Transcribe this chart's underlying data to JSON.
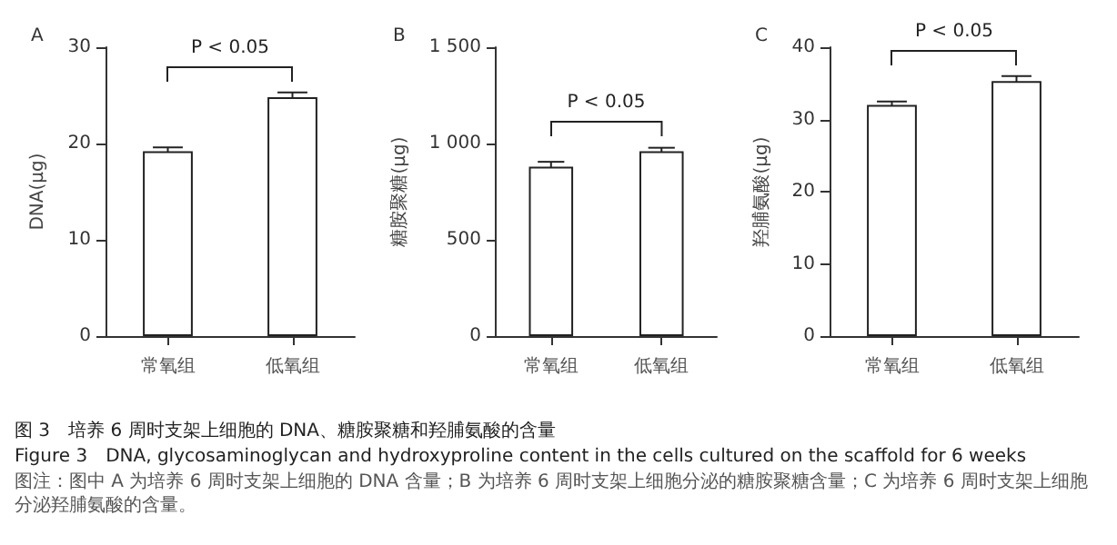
{
  "chart_data": [
    {
      "type": "bar",
      "title": "A",
      "ylabel": "DNA(μg)",
      "categories": [
        "常氧组",
        "低氧组"
      ],
      "values": [
        19.2,
        24.8
      ],
      "errors": [
        0.4,
        0.5
      ],
      "color": "#ffffff",
      "ylim": [
        0,
        30
      ],
      "yticks": [
        0,
        10,
        20,
        30
      ],
      "annotations": [
        "P < 0.05"
      ]
    },
    {
      "type": "bar",
      "title": "B",
      "ylabel": "糖胺聚糖(μg)",
      "categories": [
        "常氧组",
        "低氧组"
      ],
      "values": [
        880,
        960
      ],
      "errors": [
        25,
        18
      ],
      "color": "#ffffff",
      "ylim": [
        0,
        1500
      ],
      "yticks": [
        0,
        500,
        {
          "value": 1000,
          "label": "1 000"
        },
        {
          "value": 1500,
          "label": "1 500"
        }
      ],
      "annotations": [
        "P < 0.05"
      ]
    },
    {
      "type": "bar",
      "title": "C",
      "ylabel": "羟脯氨酸(μg)",
      "categories": [
        "常氧组",
        "低氧组"
      ],
      "values": [
        32.0,
        35.3
      ],
      "errors": [
        0.5,
        0.7
      ],
      "color": "#ffffff",
      "ylim": [
        0,
        40
      ],
      "yticks": [
        0,
        10,
        20,
        30,
        40
      ],
      "annotations": [
        "P < 0.05"
      ]
    },
    {
      "type": "other",
      "title": "图 3　培养 6 周时支架上细胞的 DNA、糖胺聚糖和羟脯氨酸的含量",
      "subtitle": "Figure 3　DNA, glycosaminoglycan and hydroxyproline content in the cells cultured on the scaffold for 6 weeks",
      "annotations": [
        "图注：图中 A 为培养 6 周时支架上细胞的 DNA 含量；B 为培养 6 周时支架上细胞分泌的糖胺聚糖含量；C 为培养 6 周时支架上细胞分泌羟脯氨酸的含量。"
      ]
    }
  ]
}
